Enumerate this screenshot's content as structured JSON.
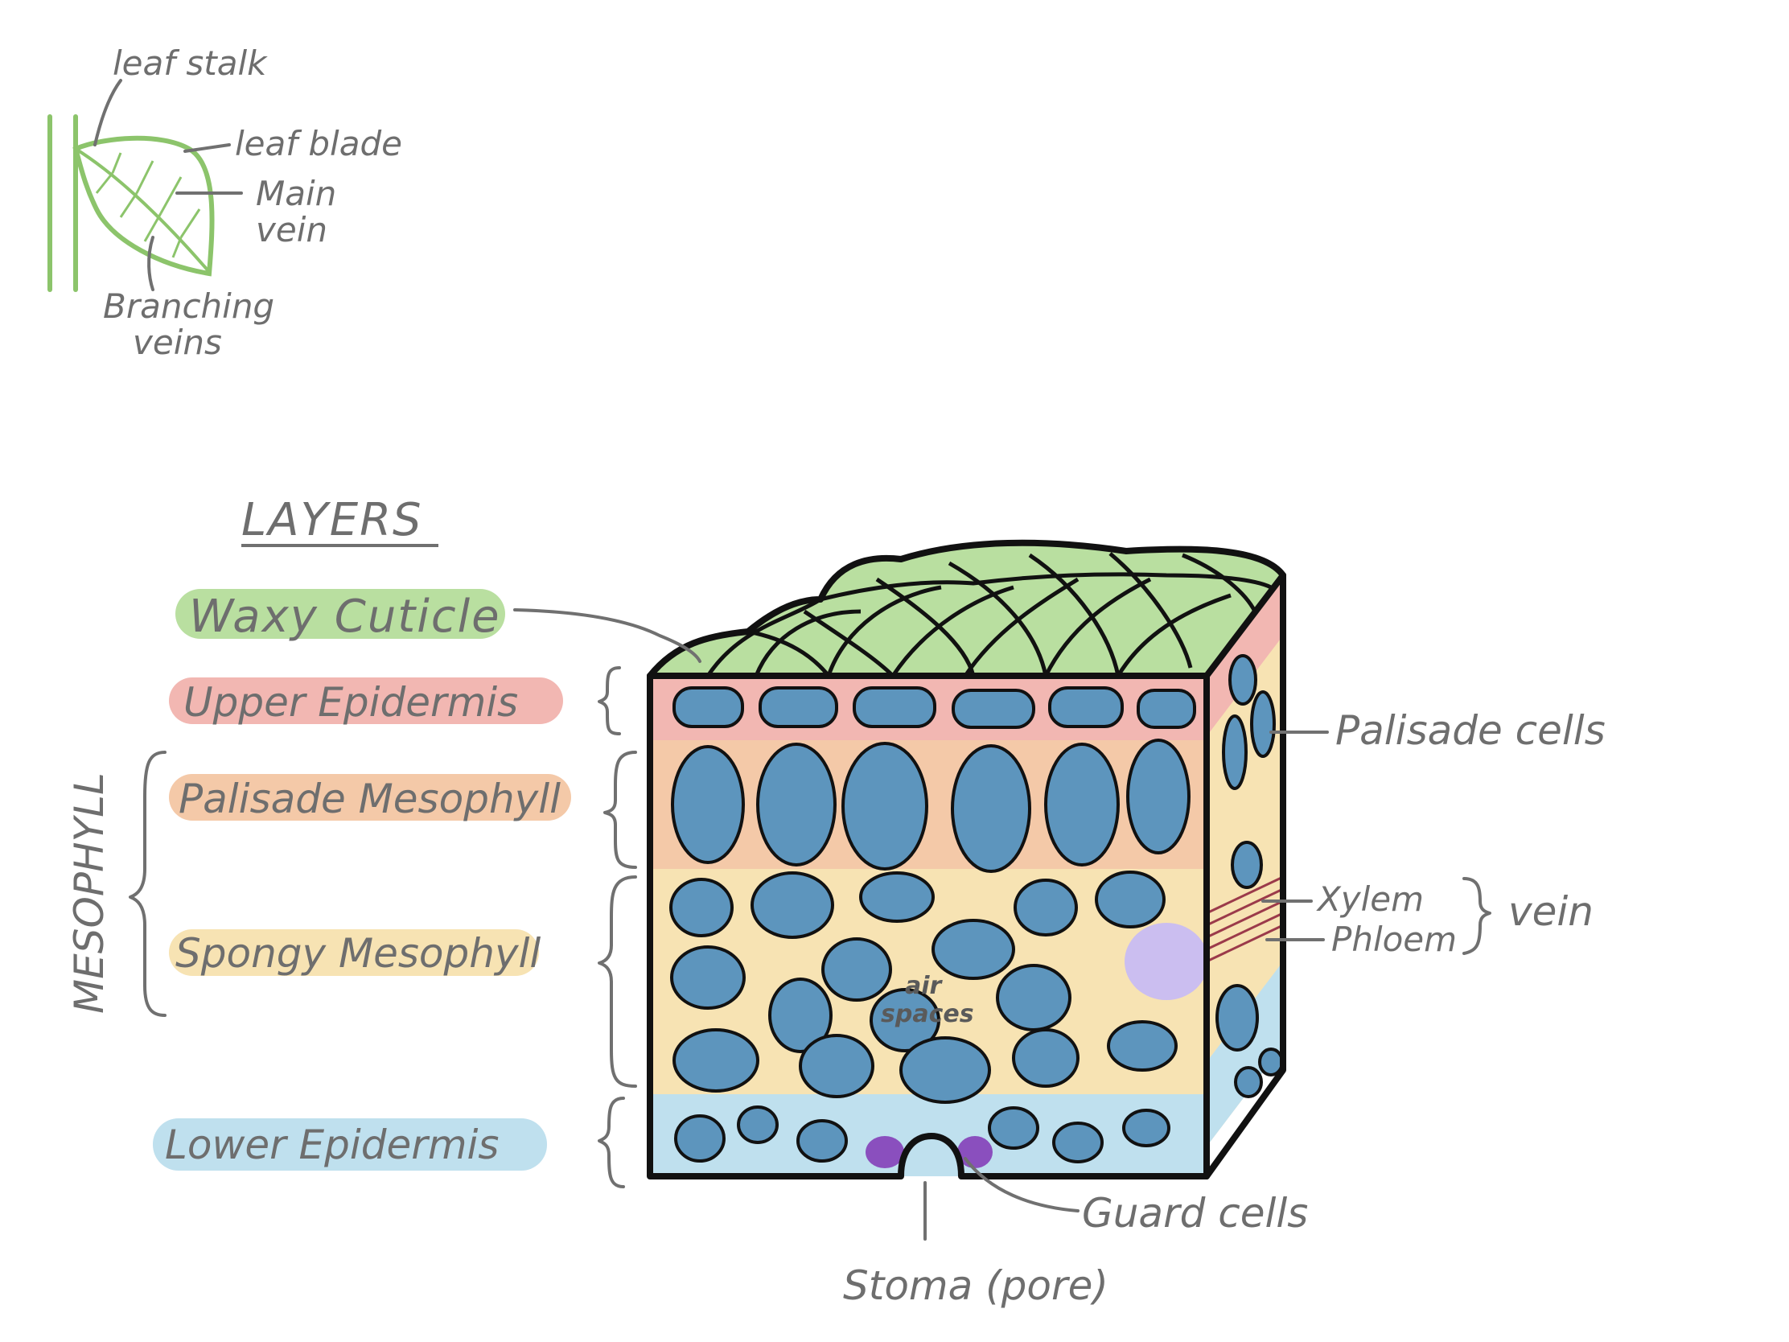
{
  "colors": {
    "cuticle": "#b9dfa0",
    "upper_epidermis": "#f2b7b2",
    "palisade": "#f4c9a8",
    "spongy": "#f7e3b3",
    "lower_epidermis": "#bfe0ee",
    "cell": "#5d95bd",
    "vein": "#cbbef0",
    "guard_cell": "#8a4fbe",
    "leaf_green": "#8cc46b",
    "label_grey": "#6e6e6e"
  },
  "leaf_sketch": {
    "leaf_stalk": "leaf stalk",
    "leaf_blade": "leaf blade",
    "main_vein_1": "Main",
    "main_vein_2": "vein",
    "branching_veins_1": "Branching",
    "branching_veins_2": "veins"
  },
  "layers": {
    "heading": "LAYERS",
    "waxy_cuticle": "Waxy Cuticle",
    "upper_epidermis": "Upper Epidermis",
    "palisade_mesophyll": "Palisade Mesophyll",
    "spongy_mesophyll": "Spongy Mesophyll",
    "lower_epidermis": "Lower Epidermis",
    "mesophyll": "MESOPHYLL"
  },
  "block": {
    "air_spaces_1": "air",
    "air_spaces_2": "spaces",
    "palisade_cells": "Palisade cells",
    "xylem": "Xylem",
    "phloem": "Phloem",
    "vein": "vein",
    "guard_cells": "Guard cells",
    "stoma": "Stoma (pore)"
  }
}
